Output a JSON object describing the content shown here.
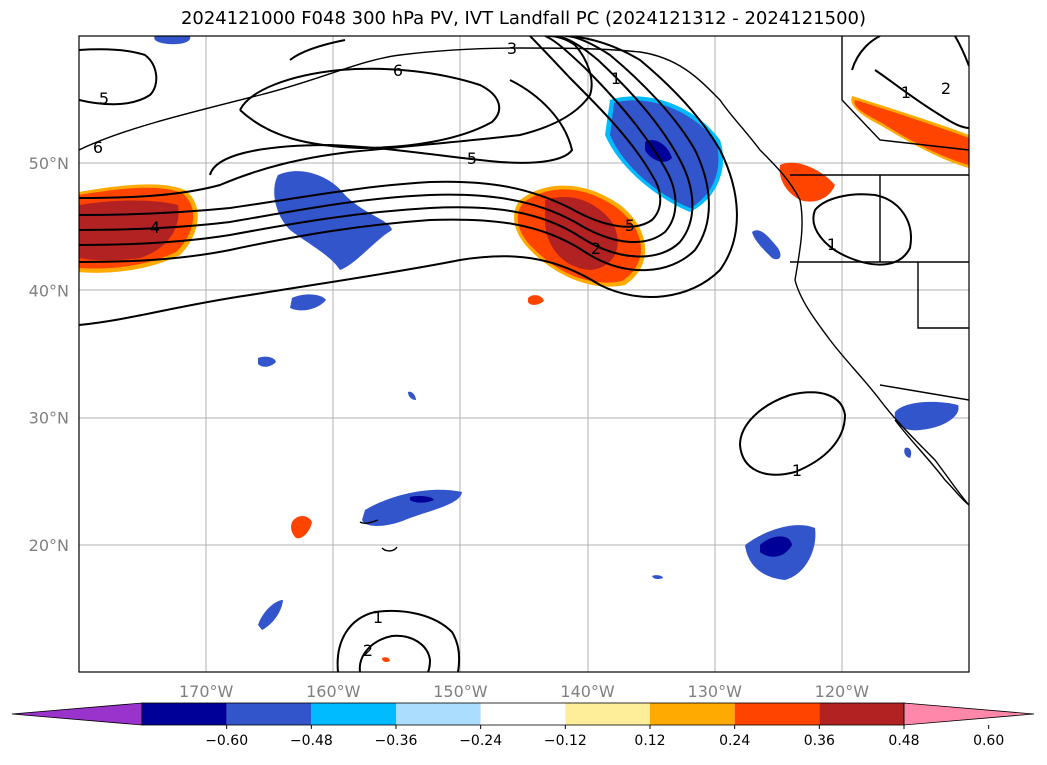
{
  "title": "2024121000 F048 300 hPa PV, IVT Landfall PC (2024121312 - 2024121500)",
  "map": {
    "extent_lon": [
      -180,
      -110
    ],
    "extent_lat": [
      10,
      60
    ],
    "gridlines": true,
    "lat_labels": [
      "20°N",
      "30°N",
      "40°N",
      "50°N"
    ],
    "lon_labels": [
      "170°W",
      "160°W",
      "150°W",
      "140°W",
      "130°W",
      "120°W"
    ],
    "contour_labels": [
      "5",
      "6",
      "5",
      "4",
      "3",
      "6",
      "1",
      "5",
      "2",
      "1",
      "2",
      "1",
      "1",
      "1",
      "2"
    ]
  },
  "colorbar": {
    "extend": "both",
    "colors": [
      "#9933cc",
      "#000099",
      "#3355cc",
      "#00bbff",
      "#aaddff",
      "#ffffff",
      "#ffee99",
      "#ffaa00",
      "#ff4400",
      "#b22222",
      "#ff88aa"
    ],
    "tick_labels": [
      "−0.60",
      "−0.48",
      "−0.36",
      "−0.24",
      "−0.12",
      "0.12",
      "0.24",
      "0.36",
      "0.48",
      "0.60"
    ]
  }
}
